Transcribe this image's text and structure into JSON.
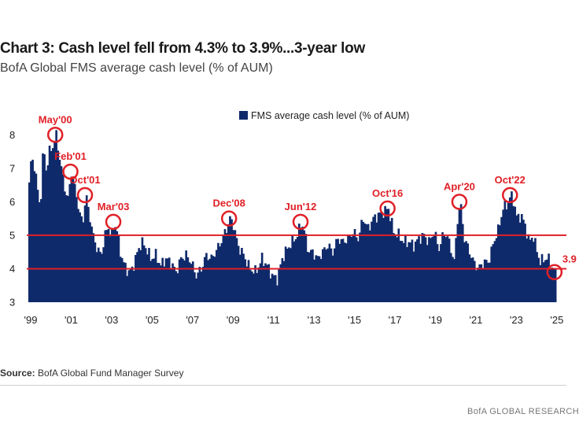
{
  "header": {
    "title": "Chart 3: Cash level fell from 4.3% to 3.9%...3-year low",
    "subtitle": "BofA Global FMS average cash level (% of AUM)"
  },
  "footer": {
    "source_label": "Source:",
    "source_text": "BofA Global Fund Manager Survey",
    "brand": "BofA GLOBAL RESEARCH"
  },
  "colors": {
    "bars": "#0f2a6b",
    "reference_lines": "#e01f26",
    "annotations": "#e01f26"
  },
  "chart_data": {
    "type": "bar",
    "title": "",
    "xlabel": "",
    "ylabel": "",
    "xlim": [
      1999.0,
      2025.2
    ],
    "ylim": [
      3,
      8.5
    ],
    "yticks": [
      "3",
      "4",
      "5",
      "6",
      "7",
      "8"
    ],
    "xticks": [
      "'99",
      "'01",
      "'03",
      "'05",
      "'07",
      "'09",
      "'11",
      "'13",
      "'15",
      "'17",
      "'19",
      "'21",
      "'23",
      "'25"
    ],
    "grid": false,
    "legend_position": "top-right",
    "series": [
      {
        "name": "FMS average cash level (% of AUM)",
        "anchors": [
          [
            1999.0,
            6.5
          ],
          [
            1999.1,
            7.3
          ],
          [
            1999.25,
            7.1
          ],
          [
            1999.4,
            6.4
          ],
          [
            1999.55,
            5.8
          ],
          [
            1999.7,
            7.7
          ],
          [
            1999.85,
            6.9
          ],
          [
            2000.0,
            7.5
          ],
          [
            2000.2,
            7.7
          ],
          [
            2000.33,
            8.0
          ],
          [
            2000.5,
            7.3
          ],
          [
            2000.7,
            6.6
          ],
          [
            2000.9,
            6.0
          ],
          [
            2001.08,
            6.9
          ],
          [
            2001.3,
            6.3
          ],
          [
            2001.5,
            5.6
          ],
          [
            2001.65,
            5.4
          ],
          [
            2001.8,
            6.2
          ],
          [
            2001.95,
            5.7
          ],
          [
            2002.15,
            5.0
          ],
          [
            2002.35,
            4.6
          ],
          [
            2002.55,
            4.4
          ],
          [
            2002.75,
            5.0
          ],
          [
            2002.9,
            5.3
          ],
          [
            2003.05,
            4.9
          ],
          [
            2003.2,
            5.4
          ],
          [
            2003.35,
            5.1
          ],
          [
            2003.5,
            4.5
          ],
          [
            2003.7,
            4.1
          ],
          [
            2003.9,
            3.9
          ],
          [
            2004.1,
            4.0
          ],
          [
            2004.35,
            4.5
          ],
          [
            2004.55,
            4.8
          ],
          [
            2004.8,
            4.6
          ],
          [
            2005.0,
            4.3
          ],
          [
            2005.25,
            4.4
          ],
          [
            2005.5,
            4.1
          ],
          [
            2005.75,
            4.3
          ],
          [
            2006.0,
            4.2
          ],
          [
            2006.25,
            3.9
          ],
          [
            2006.5,
            4.3
          ],
          [
            2006.75,
            4.4
          ],
          [
            2007.0,
            4.2
          ],
          [
            2007.25,
            3.8
          ],
          [
            2007.5,
            4.0
          ],
          [
            2007.75,
            4.4
          ],
          [
            2008.0,
            4.3
          ],
          [
            2008.3,
            4.6
          ],
          [
            2008.55,
            4.9
          ],
          [
            2008.75,
            5.2
          ],
          [
            2008.92,
            5.5
          ],
          [
            2009.1,
            5.3
          ],
          [
            2009.3,
            4.7
          ],
          [
            2009.6,
            4.4
          ],
          [
            2009.9,
            4.0
          ],
          [
            2010.2,
            3.9
          ],
          [
            2010.5,
            4.3
          ],
          [
            2010.75,
            4.1
          ],
          [
            2011.0,
            3.8
          ],
          [
            2011.25,
            3.7
          ],
          [
            2011.5,
            4.3
          ],
          [
            2011.75,
            4.6
          ],
          [
            2012.0,
            4.8
          ],
          [
            2012.25,
            5.0
          ],
          [
            2012.45,
            5.4
          ],
          [
            2012.6,
            5.1
          ],
          [
            2012.8,
            4.5
          ],
          [
            2013.0,
            4.5
          ],
          [
            2013.25,
            4.3
          ],
          [
            2013.5,
            4.5
          ],
          [
            2013.75,
            4.7
          ],
          [
            2014.0,
            4.5
          ],
          [
            2014.25,
            4.9
          ],
          [
            2014.5,
            4.8
          ],
          [
            2014.75,
            4.9
          ],
          [
            2015.0,
            5.1
          ],
          [
            2015.25,
            4.9
          ],
          [
            2015.5,
            5.5
          ],
          [
            2015.75,
            5.2
          ],
          [
            2016.0,
            5.5
          ],
          [
            2016.25,
            5.6
          ],
          [
            2016.5,
            5.7
          ],
          [
            2016.75,
            5.8
          ],
          [
            2017.0,
            5.1
          ],
          [
            2017.25,
            5.0
          ],
          [
            2017.5,
            4.8
          ],
          [
            2017.75,
            4.8
          ],
          [
            2018.0,
            4.7
          ],
          [
            2018.25,
            4.9
          ],
          [
            2018.5,
            5.0
          ],
          [
            2018.75,
            4.8
          ],
          [
            2019.0,
            5.1
          ],
          [
            2019.25,
            4.6
          ],
          [
            2019.5,
            5.1
          ],
          [
            2019.7,
            4.9
          ],
          [
            2020.0,
            4.2
          ],
          [
            2020.15,
            5.4
          ],
          [
            2020.3,
            6.0
          ],
          [
            2020.5,
            4.9
          ],
          [
            2020.7,
            4.6
          ],
          [
            2020.95,
            4.2
          ],
          [
            2021.2,
            4.0
          ],
          [
            2021.45,
            4.2
          ],
          [
            2021.7,
            4.2
          ],
          [
            2021.95,
            4.8
          ],
          [
            2022.2,
            5.2
          ],
          [
            2022.4,
            5.8
          ],
          [
            2022.6,
            5.9
          ],
          [
            2022.8,
            6.2
          ],
          [
            2022.95,
            6.0
          ],
          [
            2023.1,
            5.5
          ],
          [
            2023.3,
            5.6
          ],
          [
            2023.5,
            5.3
          ],
          [
            2023.7,
            4.8
          ],
          [
            2023.9,
            5.0
          ],
          [
            2024.05,
            4.6
          ],
          [
            2024.25,
            4.2
          ],
          [
            2024.45,
            4.3
          ],
          [
            2024.65,
            4.3
          ],
          [
            2024.8,
            4.1
          ],
          [
            2024.95,
            3.9
          ],
          [
            2025.05,
            3.9
          ]
        ]
      }
    ],
    "reference_lines": [
      5.0,
      4.0
    ],
    "annotations": [
      {
        "label": "May'00",
        "x": 2000.33,
        "y": 8.0,
        "pos": "above"
      },
      {
        "label": "Feb'01",
        "x": 2001.08,
        "y": 6.9,
        "pos": "above"
      },
      {
        "label": "Oct'01",
        "x": 2001.8,
        "y": 6.2,
        "pos": "above"
      },
      {
        "label": "Mar'03",
        "x": 2003.2,
        "y": 5.4,
        "pos": "above"
      },
      {
        "label": "Dec'08",
        "x": 2008.92,
        "y": 5.5,
        "pos": "above"
      },
      {
        "label": "Jun'12",
        "x": 2012.45,
        "y": 5.4,
        "pos": "above"
      },
      {
        "label": "Oct'16",
        "x": 2016.75,
        "y": 5.8,
        "pos": "above"
      },
      {
        "label": "Apr'20",
        "x": 2020.3,
        "y": 6.0,
        "pos": "above"
      },
      {
        "label": "Oct'22",
        "x": 2022.8,
        "y": 6.2,
        "pos": "above"
      },
      {
        "label": "3.9",
        "x": 2025.0,
        "y": 3.9,
        "pos": "right"
      }
    ]
  }
}
